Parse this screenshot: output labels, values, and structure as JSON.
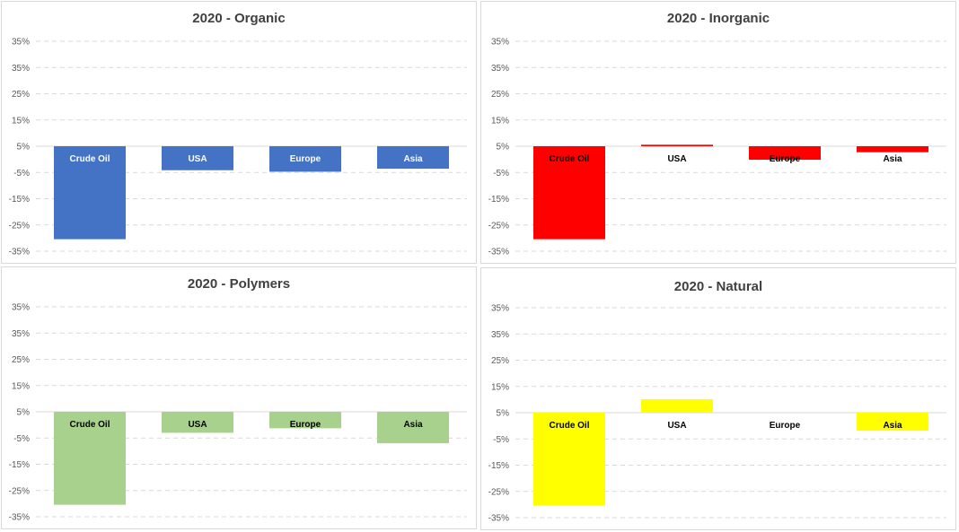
{
  "chart_data": [
    {
      "type": "bar",
      "title": "2020 - Organic",
      "categories": [
        "Crude Oil",
        "USA",
        "Europe",
        "Asia"
      ],
      "values": [
        -31,
        -8,
        -8.5,
        -7.5
      ],
      "ytick_labels": [
        "35%",
        "35%",
        "25%",
        "15%",
        "5%",
        "-5%",
        "-15%",
        "-25%",
        "-35%"
      ],
      "ylim": [
        -35,
        35
      ],
      "grid": true,
      "bar_color": "#4472c4",
      "label_color": "#ffffff"
    },
    {
      "type": "bar",
      "title": "2020 - Inorganic",
      "categories": [
        "Crude Oil",
        "USA",
        "Europe",
        "Asia"
      ],
      "values": [
        -31,
        0.5,
        -4.5,
        -2
      ],
      "ytick_labels": [
        "35%",
        "35%",
        "25%",
        "15%",
        "5%",
        "-5%",
        "-15%",
        "-25%",
        "-35%"
      ],
      "ylim": [
        -35,
        35
      ],
      "grid": true,
      "bar_color": "#ff0000",
      "label_color": "#000000"
    },
    {
      "type": "bar",
      "title": "2020 - Polymers",
      "categories": [
        "Crude Oil",
        "USA",
        "Europe",
        "Asia"
      ],
      "values": [
        -31,
        -7,
        -5.5,
        -10.5
      ],
      "ytick_labels": [
        "35%",
        "35%",
        "25%",
        "15%",
        "5%",
        "-5%",
        "-15%",
        "-25%",
        "-35%"
      ],
      "ylim": [
        -35,
        35
      ],
      "grid": true,
      "bar_color": "#a9d18e",
      "label_color": "#000000"
    },
    {
      "type": "bar",
      "title": "2020 - Natural",
      "categories": [
        "Crude Oil",
        "USA",
        "Europe",
        "Asia"
      ],
      "values": [
        -31,
        4.5,
        0,
        -6
      ],
      "ytick_labels": [
        "35%",
        "35%",
        "25%",
        "15%",
        "5%",
        "-5%",
        "-15%",
        "-25%",
        "-35%"
      ],
      "ylim": [
        -35,
        35
      ],
      "grid": true,
      "bar_color": "#ffff00",
      "label_color": "#000000"
    }
  ]
}
